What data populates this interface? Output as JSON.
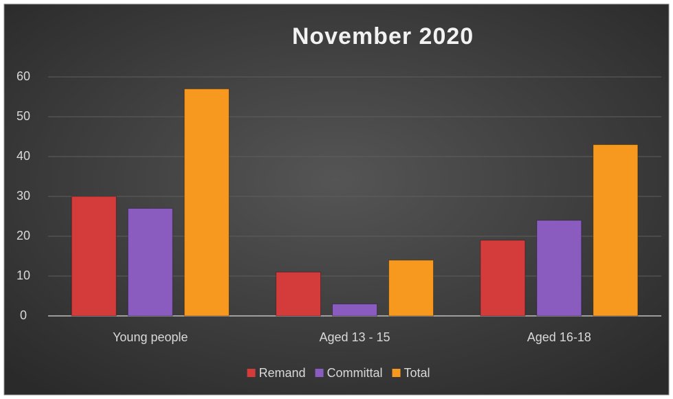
{
  "chart_data": {
    "type": "bar",
    "title": "November 2020",
    "categories": [
      "Young people",
      "Aged 13 - 15",
      "Aged 16-18"
    ],
    "series": [
      {
        "name": "Remand",
        "color": "#d43c3c",
        "values": [
          30,
          11,
          19
        ]
      },
      {
        "name": "Committal",
        "color": "#8a5cbf",
        "values": [
          27,
          3,
          24
        ]
      },
      {
        "name": "Total",
        "color": "#f7991f",
        "values": [
          57,
          14,
          43
        ]
      }
    ],
    "ylim": [
      0,
      60
    ],
    "yticks": [
      0,
      10,
      20,
      30,
      40,
      50,
      60
    ],
    "grid": true,
    "legend": "bottom"
  }
}
